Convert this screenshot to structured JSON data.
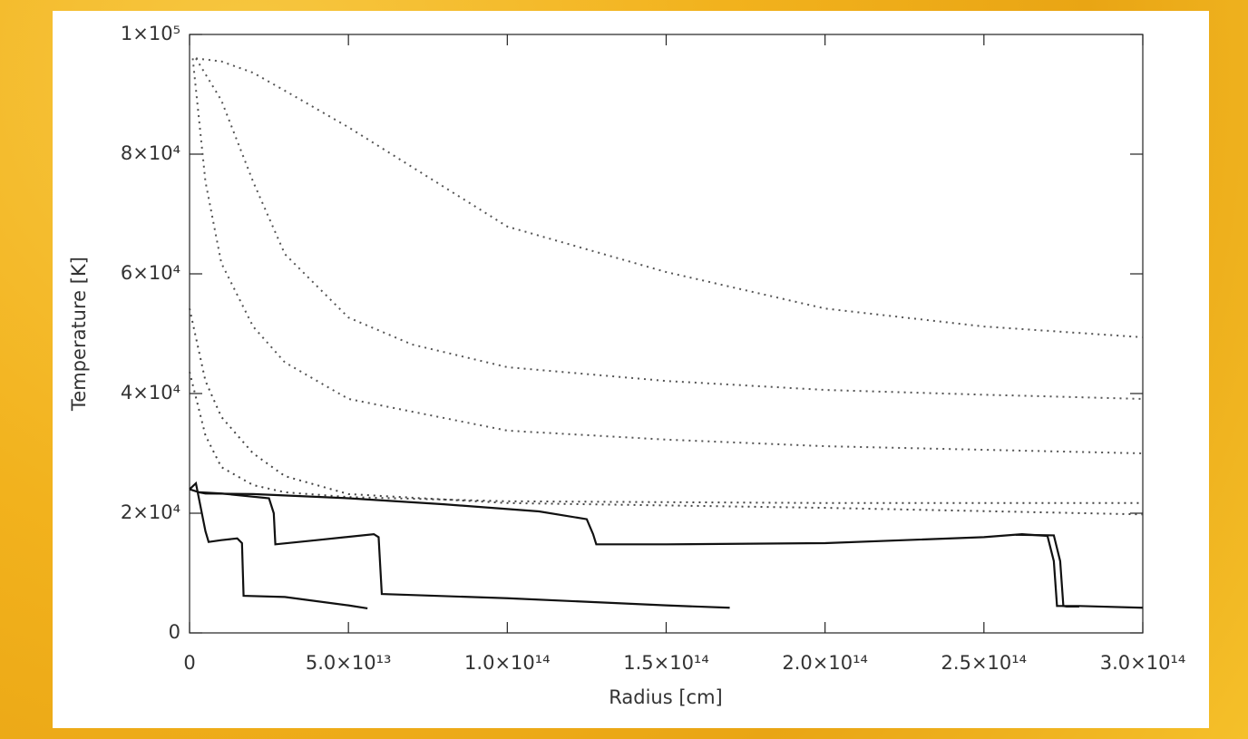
{
  "chart_data": {
    "type": "line",
    "x_label": "Radius [cm]",
    "y_label": "Temperature [K]",
    "xlim": [
      0,
      300000000000000.0
    ],
    "ylim": [
      0,
      100000
    ],
    "xticks": [
      0,
      {
        "value": 50000000000000.0,
        "label": "5.0×10¹³"
      },
      {
        "value": 100000000000000.0,
        "label": "1.0×10¹⁴"
      },
      {
        "value": 150000000000000.0,
        "label": "1.5×10¹⁴"
      },
      {
        "value": 200000000000000.0,
        "label": "2.0×10¹⁴"
      },
      {
        "value": 250000000000000.0,
        "label": "2.5×10¹⁴"
      },
      {
        "value": 300000000000000.0,
        "label": "3.0×10¹⁴"
      }
    ],
    "yticks": [
      0,
      {
        "value": 20000,
        "label": "2×10⁴"
      },
      {
        "value": 40000,
        "label": "4×10⁴"
      },
      {
        "value": 60000,
        "label": "6×10⁴"
      },
      {
        "value": 80000,
        "label": "8×10⁴"
      },
      {
        "value": 100000,
        "label": "1×10⁵"
      }
    ],
    "series": [
      {
        "color": "#555555",
        "line_style": "dotted",
        "x": [
          2000000000000.0,
          10000000000000.0,
          20000000000000.0,
          30000000000000.0,
          50000000000000.0,
          100000000000000.0,
          150000000000000.0,
          200000000000000.0,
          250000000000000.0,
          300000000000000.0
        ],
        "values": [
          96000,
          95500,
          93600,
          90600,
          84500,
          67900,
          60300,
          54200,
          51200,
          49400
        ]
      },
      {
        "color": "#555555",
        "line_style": "dotted",
        "x": [
          2000000000000.0,
          10000000000000.0,
          20000000000000.0,
          30000000000000.0,
          50000000000000.0,
          70000000000000.0,
          100000000000000.0,
          150000000000000.0,
          200000000000000.0,
          250000000000000.0,
          300000000000000.0
        ],
        "values": [
          96000,
          89000,
          75400,
          63300,
          52700,
          48200,
          44400,
          42100,
          40600,
          39800,
          39100
        ]
      },
      {
        "color": "#555555",
        "line_style": "dotted",
        "x": [
          1000000000000.0,
          5000000000000.0,
          10000000000000.0,
          20000000000000.0,
          30000000000000.0,
          50000000000000.0,
          100000000000000.0,
          150000000000000.0,
          200000000000000.0,
          300000000000000.0
        ],
        "values": [
          96000,
          75400,
          61800,
          51200,
          45200,
          39100,
          33800,
          32300,
          31200,
          30000
        ]
      },
      {
        "color": "#444444",
        "line_style": "dotted",
        "x": [
          0,
          5000000000000.0,
          10000000000000.0,
          20000000000000.0,
          30000000000000.0,
          50000000000000.0,
          100000000000000.0,
          200000000000000.0,
          300000000000000.0
        ],
        "values": [
          54200,
          42100,
          36100,
          30000,
          26200,
          23200,
          21700,
          20900,
          19800
        ]
      },
      {
        "color": "#444444",
        "line_style": "dotted",
        "x": [
          0,
          5000000000000.0,
          10000000000000.0,
          20000000000000.0,
          30000000000000.0,
          50000000000000.0,
          100000000000000.0,
          200000000000000.0,
          300000000000000.0
        ],
        "values": [
          43600,
          33000,
          27700,
          24700,
          23500,
          22700,
          22000,
          21700,
          21700
        ]
      },
      {
        "color": "#111111",
        "line_style": "solid",
        "x": [
          0,
          3000000000000.0,
          5000000000000.0,
          20000000000000.0,
          50000000000000.0,
          80000000000000.0,
          110000000000000.0,
          125000000000000.0,
          127000000000000.0,
          128000000000000.0,
          150000000000000.0,
          200000000000000.0,
          250000000000000.0,
          262000000000000.0,
          270000000000000.0,
          272000000000000.0,
          273000000000000.0,
          280000000000000.0,
          300000000000000.0
        ],
        "values": [
          24000,
          23500,
          23300,
          23200,
          22500,
          21500,
          20300,
          19000,
          16500,
          14800,
          14800,
          15000,
          16000,
          16500,
          16200,
          12000,
          4500,
          4500,
          4200
        ]
      },
      {
        "color": "#111111",
        "line_style": "solid",
        "x": [
          260000000000000.0,
          272000000000000.0,
          274000000000000.0,
          275000000000000.0,
          276000000000000.0,
          280000000000000.0
        ],
        "values": [
          16400,
          16300,
          12000,
          4500,
          4400,
          4400
        ]
      },
      {
        "color": "#111111",
        "line_style": "solid",
        "x": [
          0,
          2000000000000.0,
          5000000000000.0,
          6000000000000.0,
          10000000000000.0,
          15000000000000.0,
          16500000000000.0,
          17000000000000.0,
          30000000000000.0,
          50000000000000.0,
          56000000000000.0
        ],
        "values": [
          24000,
          25000,
          17000,
          15200,
          15500,
          15800,
          15000,
          6200,
          6000,
          4600,
          4100
        ]
      },
      {
        "color": "#111111",
        "line_style": "solid",
        "x": [
          3000000000000.0,
          10000000000000.0,
          25000000000000.0,
          26500000000000.0,
          27000000000000.0,
          40000000000000.0,
          58000000000000.0,
          59500000000000.0,
          60500000000000.0,
          100000000000000.0,
          150000000000000.0,
          170000000000000.0
        ],
        "values": [
          23500,
          23300,
          22500,
          20000,
          14800,
          15500,
          16500,
          16000,
          6500,
          5800,
          4600,
          4200
        ]
      }
    ]
  }
}
